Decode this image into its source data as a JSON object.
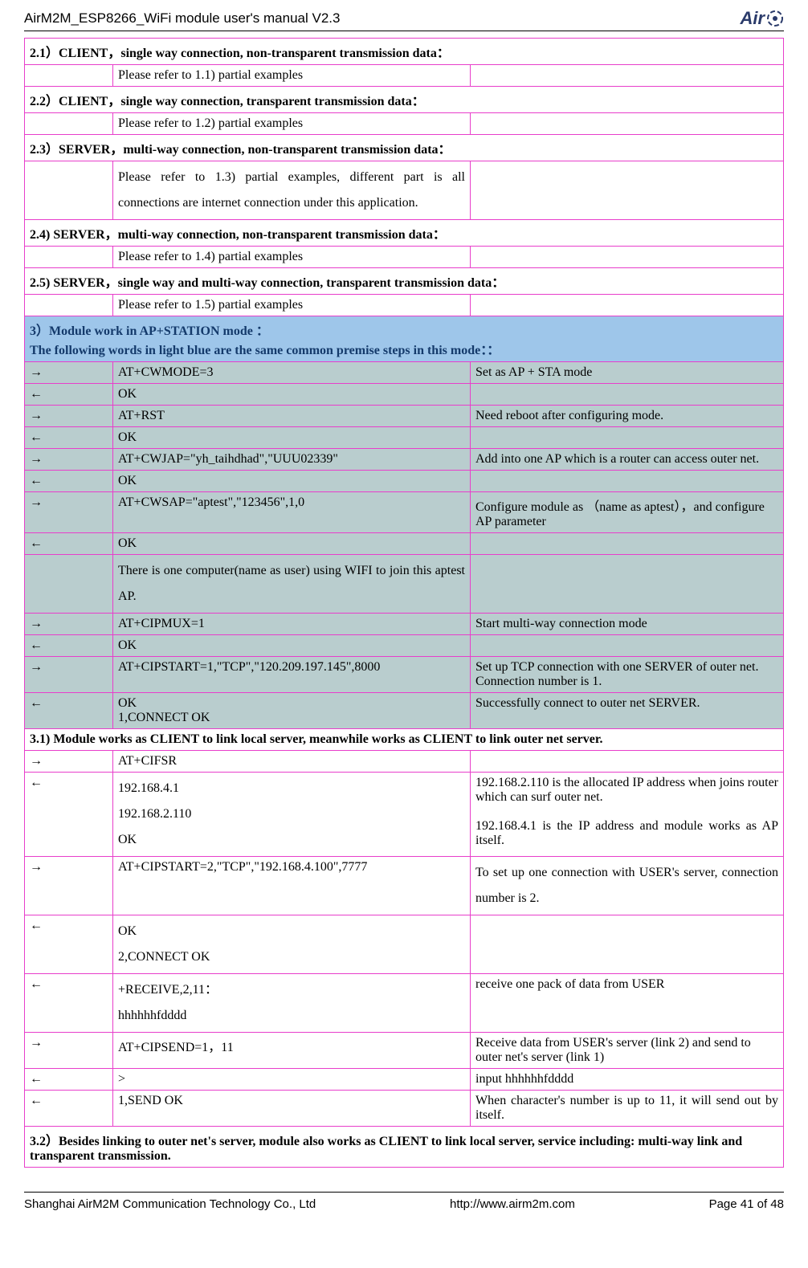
{
  "header": {
    "title": "AirM2M_ESP8266_WiFi module user's manual V2.3",
    "logo_text": "Air"
  },
  "footer": {
    "company": "Shanghai AirM2M Communication Technology Co., Ltd",
    "url": "http://www.airm2m.com",
    "page": "Page 41 of 48"
  },
  "rows": [
    {
      "type": "header",
      "text": "2.1）CLIENT，single way connection,    non-transparent transmission data："
    },
    {
      "type": "data",
      "c1": "",
      "c2": "Please refer to 1.1) partial examples",
      "c3": ""
    },
    {
      "type": "header",
      "text": "2.2）CLIENT，single way connection,    transparent transmission data："
    },
    {
      "type": "data",
      "c1": "",
      "c2": "Please refer to 1.2) partial examples",
      "c3": ""
    },
    {
      "type": "header",
      "text": "2.3）SERVER，multi-way connection,    non-transparent transmission data："
    },
    {
      "type": "data",
      "c1": "",
      "c2": "Please refer to 1.3) partial examples, different part is all connections are internet connection under this application.",
      "c3": "",
      "justify": true,
      "linesp": true
    },
    {
      "type": "header",
      "text": "2.4) SERVER，multi-way connection,    non-transparent transmission data："
    },
    {
      "type": "data",
      "c1": "",
      "c2": "Please refer to 1.4) partial examples",
      "c3": ""
    },
    {
      "type": "header",
      "text": "2.5) SERVER，single way and multi-way connection, transparent transmission data："
    },
    {
      "type": "data",
      "c1": "",
      "c2": "Please refer to 1.5) partial examples",
      "c3": ""
    },
    {
      "type": "blueheader",
      "text": "3）Module work in AP+STATION mode ：\nThe following words in light blue are the same common premise steps in this mode：："
    },
    {
      "type": "shaded",
      "c1": "→",
      "c2": "AT+CWMODE=3",
      "c3": "Set as AP + STA mode"
    },
    {
      "type": "shaded",
      "c1": "←",
      "c2": "OK",
      "c3": ""
    },
    {
      "type": "shaded",
      "c1": "→",
      "c2": "AT+RST",
      "c3": "Need reboot after configuring mode."
    },
    {
      "type": "shaded",
      "c1": "←",
      "c2": "OK",
      "c3": ""
    },
    {
      "type": "shaded",
      "c1": "→",
      "c2": "AT+CWJAP=\"yh_taihdhad\",\"UUU02339\"",
      "c3": "Add into one AP which is a router can access outer net."
    },
    {
      "type": "shaded",
      "c1": "←",
      "c2": "OK",
      "c3": ""
    },
    {
      "type": "shaded",
      "c1": "→",
      "c2": "AT+CWSAP=\"aptest\",\"123456\",1,0",
      "c3": "Configure module as （name as aptest），and configure AP parameter"
    },
    {
      "type": "shaded",
      "c1": "←",
      "c2": "OK",
      "c3": ""
    },
    {
      "type": "shaded",
      "c1": "",
      "c2": "There is one computer(name as user) using WIFI to join this aptest AP.",
      "c3": "",
      "justify": true,
      "linesp": true
    },
    {
      "type": "shaded",
      "c1": "→",
      "c2": "AT+CIPMUX=1",
      "c3": "Start multi-way connection mode"
    },
    {
      "type": "shaded",
      "c1": "←",
      "c2": "OK",
      "c3": ""
    },
    {
      "type": "shaded",
      "c1": "→",
      "c2": "AT+CIPSTART=1,\"TCP\",\"120.209.197.145\",8000",
      "c3": "Set up TCP connection with one SERVER of outer net. Connection number is 1."
    },
    {
      "type": "shaded",
      "c1": "←",
      "c2": "OK\n1,CONNECT OK",
      "c3": "Successfully connect to outer net SERVER."
    },
    {
      "type": "header",
      "text": "3.1) Module works as CLIENT to link local server, meanwhile works as CLIENT to link outer net server."
    },
    {
      "type": "data",
      "c1": "→",
      "c2": "AT+CIFSR",
      "c3": ""
    },
    {
      "type": "data",
      "c1": "←",
      "c2": "192.168.4.1\n192.168.2.110\nOK",
      "c3": "192.168.2.110 is the allocated IP address when joins router which can surf outer net.\n\n192.168.4.1 is the IP address and module works as AP itself.",
      "justify3": true,
      "linesp": true
    },
    {
      "type": "data",
      "c1": "→",
      "c2": "AT+CIPSTART=2,\"TCP\",\"192.168.4.100\",7777",
      "c3": "To set up one connection with USER's server, connection number is 2.",
      "justify3": true,
      "linesp3": true
    },
    {
      "type": "data",
      "c1": "←",
      "c2": "OK\n2,CONNECT OK",
      "c3": "",
      "linesp": true
    },
    {
      "type": "data",
      "c1": "←",
      "c2": "+RECEIVE,2,11：\nhhhhhhfdddd",
      "c3": "receive one pack of data from USER",
      "linesp": true
    },
    {
      "type": "data",
      "c1": "→",
      "c2": "AT+CIPSEND=1，11",
      "c3": "Receive data from USER's server (link 2) and send to outer net's server (link 1)"
    },
    {
      "type": "data",
      "c1": "←",
      "c2": ">",
      "c3": "input hhhhhhfdddd"
    },
    {
      "type": "data",
      "c1": "←",
      "c2": "1,SEND OK",
      "c3": "When character's number is up to 11, it will send out by itself.",
      "justify3": true
    },
    {
      "type": "header",
      "text": "3.2）Besides linking to outer net's server, module also works as CLIENT to link local server, service including: multi-way link and transparent transmission."
    }
  ]
}
